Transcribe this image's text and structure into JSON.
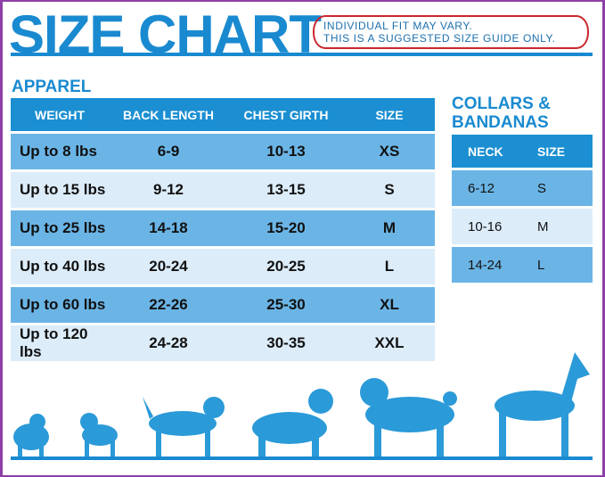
{
  "title": "SIZE CHART",
  "note": {
    "line1": "INDIVIDUAL FIT MAY VARY.",
    "line2": "THIS IS A SUGGESTED SIZE GUIDE ONLY."
  },
  "apparel": {
    "label": "APPAREL",
    "headers": [
      "WEIGHT",
      "BACK LENGTH",
      "CHEST GIRTH",
      "SIZE"
    ],
    "rows": [
      [
        "Up to 8 lbs",
        "6-9",
        "10-13",
        "XS"
      ],
      [
        "Up to 15 lbs",
        "9-12",
        "13-15",
        "S"
      ],
      [
        "Up to 25 lbs",
        "14-18",
        "15-20",
        "M"
      ],
      [
        "Up to 40 lbs",
        "20-24",
        "20-25",
        "L"
      ],
      [
        "Up to 60 lbs",
        "22-26",
        "25-30",
        "XL"
      ],
      [
        "Up to 120 lbs",
        "24-28",
        "30-35",
        "XXL"
      ]
    ]
  },
  "collars": {
    "label_line1": "COLLARS &",
    "label_line2": "BANDANAS",
    "headers": [
      "NECK",
      "SIZE"
    ],
    "rows": [
      [
        "6-12",
        "S"
      ],
      [
        "10-16",
        "M"
      ],
      [
        "14-24",
        "L"
      ]
    ]
  },
  "colors": {
    "brand": "#1a8ad0",
    "header": "#1b8fd2",
    "row_dark": "#6bb5e6",
    "row_light": "#dcecf9",
    "note_border": "#c8282e",
    "frame": "#8e3fa8"
  }
}
